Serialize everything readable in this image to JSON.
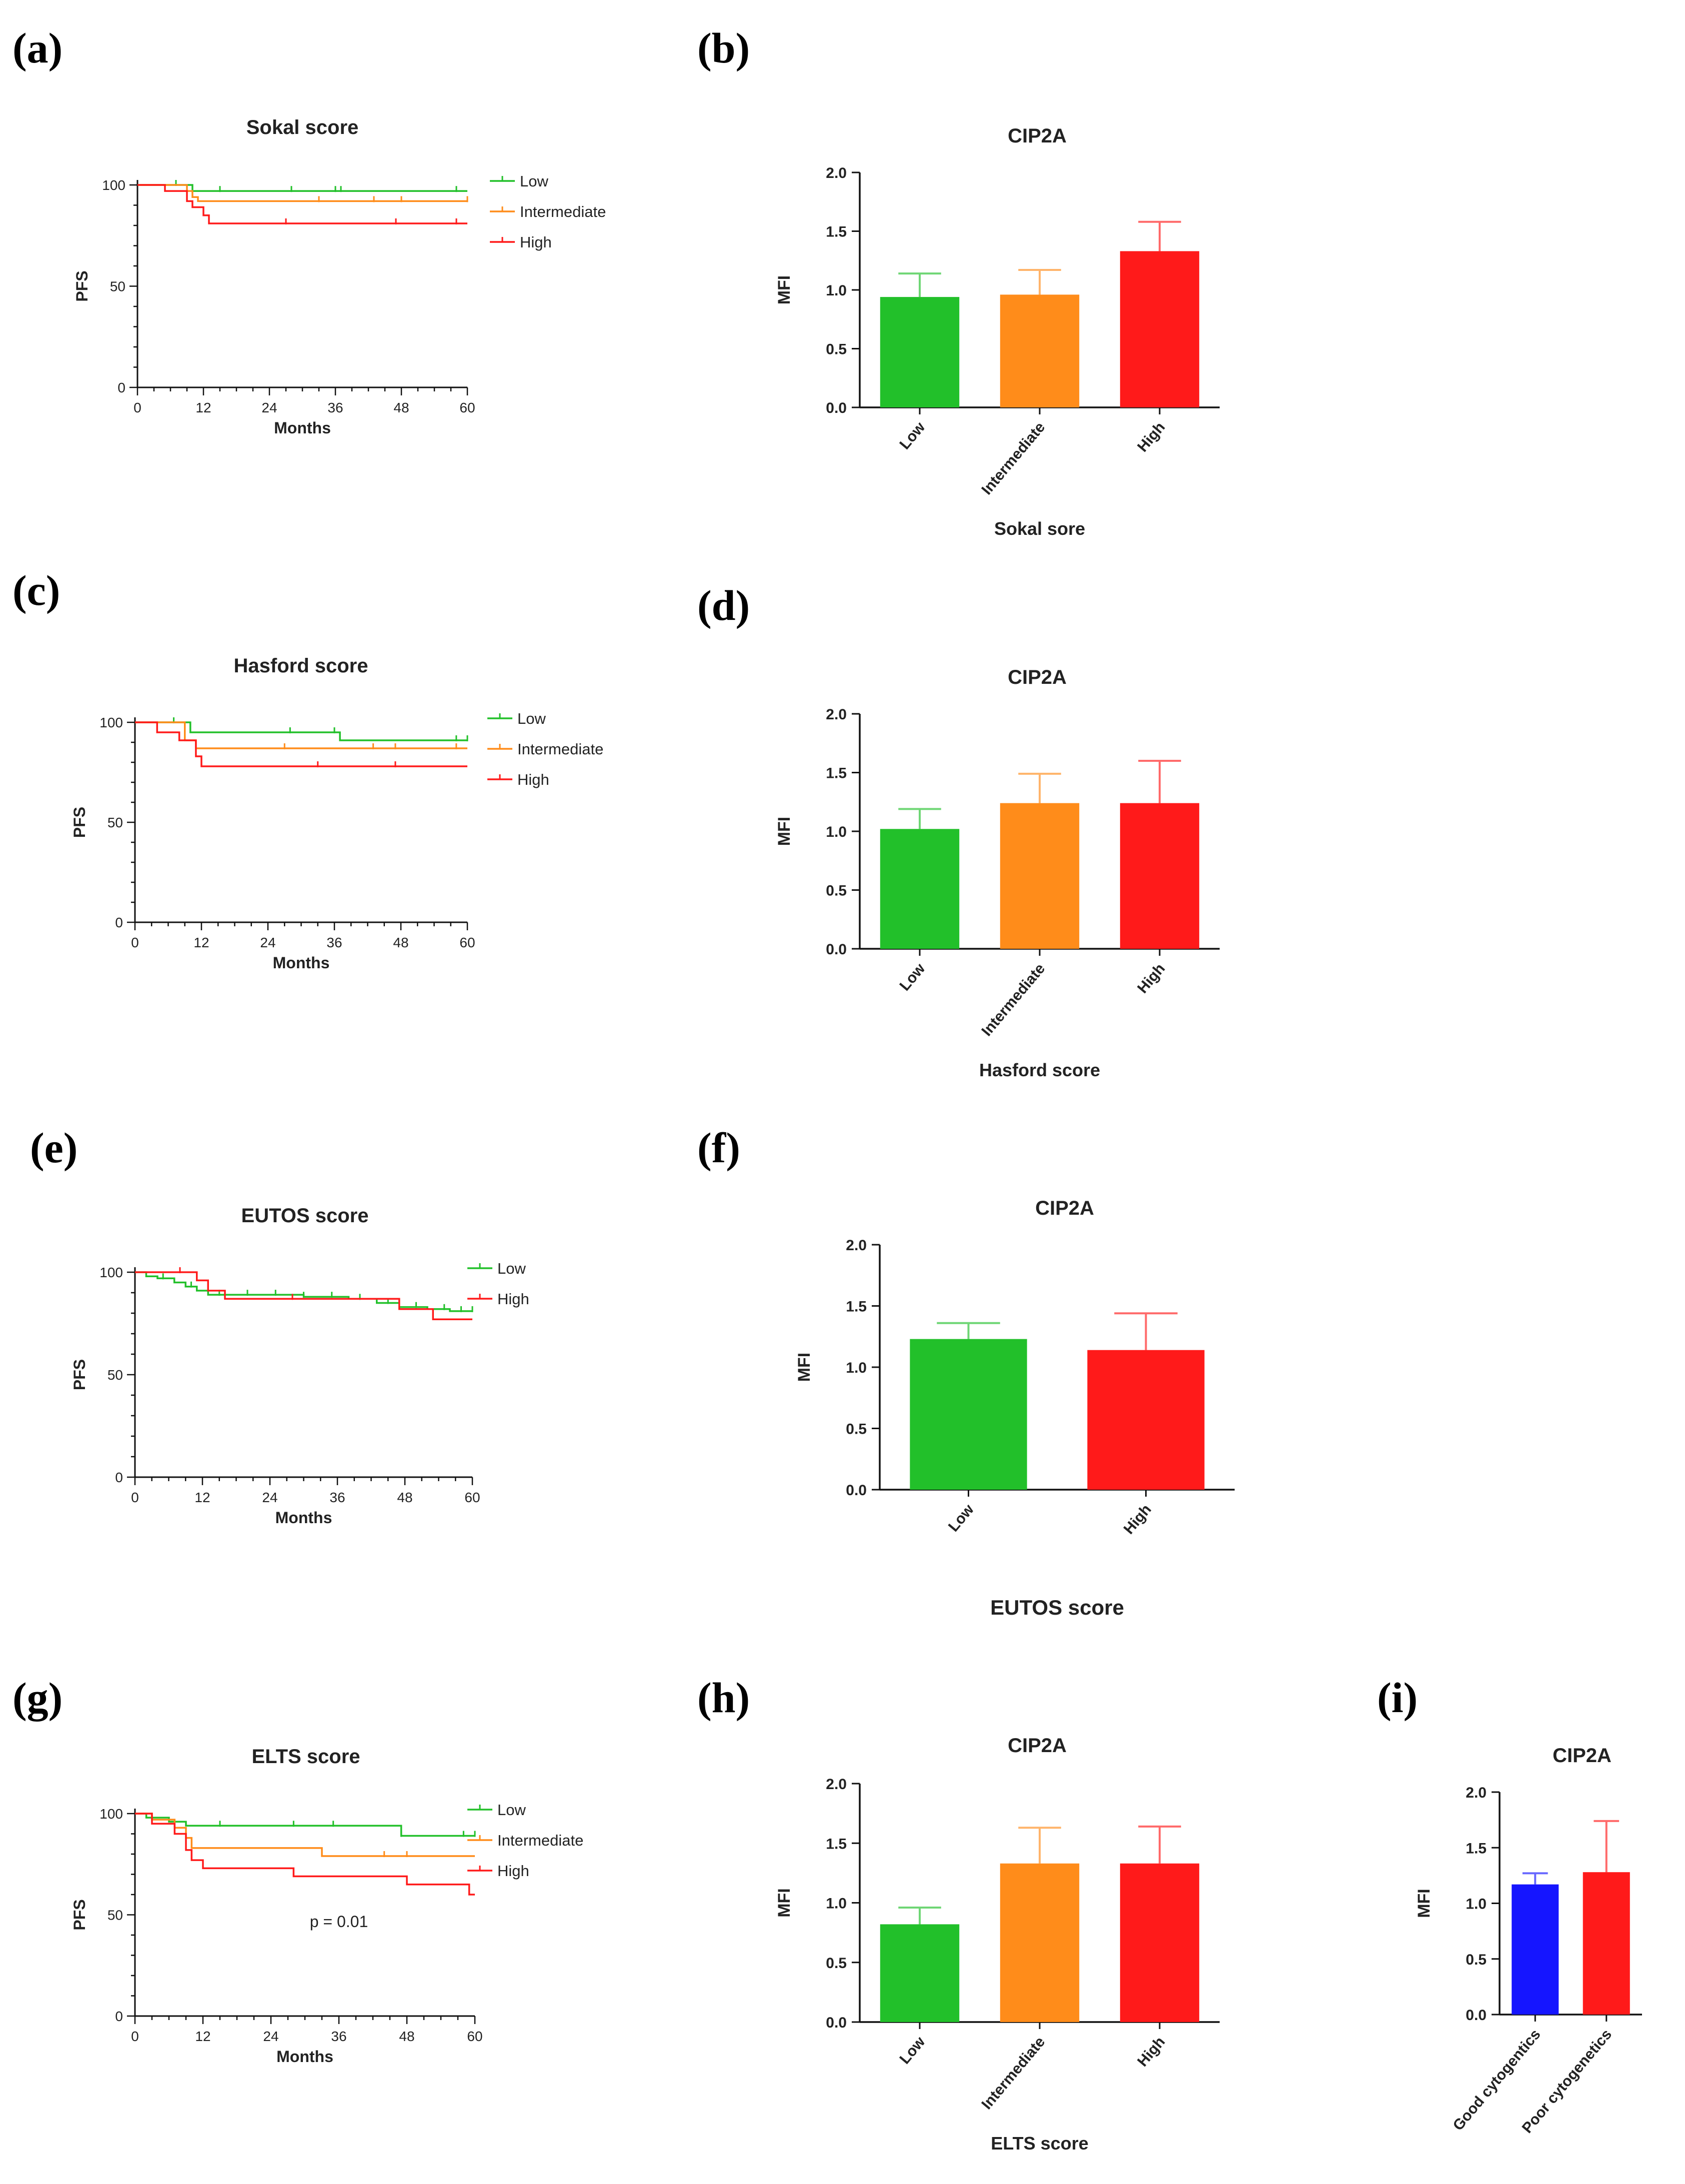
{
  "colors": {
    "low": "#22c02a",
    "intermediate": "#ff8c1a",
    "high": "#ff1a1a",
    "good": "#1515ff",
    "axis": "#111111"
  },
  "chart_data": [
    {
      "panel": "(a)",
      "type": "line",
      "title": "Sokal score",
      "xlabel": "Months",
      "ylabel": "PFS",
      "xlim": [
        0,
        60
      ],
      "ylim": [
        0,
        100
      ],
      "xticks": [
        "0",
        "12",
        "24",
        "36",
        "48",
        "60"
      ],
      "yticks": [
        "0",
        "50",
        "100"
      ],
      "legend": "right",
      "series": [
        {
          "name": "Low",
          "color": "low",
          "steps": [
            [
              0,
              100
            ],
            [
              9,
              100
            ],
            [
              10,
              97
            ],
            [
              60,
              97
            ]
          ],
          "censor": [
            7,
            15,
            28,
            36,
            37,
            58
          ]
        },
        {
          "name": "Intermediate",
          "color": "intermediate",
          "steps": [
            [
              0,
              100
            ],
            [
              8,
              100
            ],
            [
              9,
              97
            ],
            [
              10,
              94
            ],
            [
              11,
              92
            ],
            [
              60,
              92
            ]
          ],
          "censor": [
            33,
            43,
            48,
            60
          ]
        },
        {
          "name": "High",
          "color": "high",
          "steps": [
            [
              0,
              100
            ],
            [
              4,
              100
            ],
            [
              5,
              97
            ],
            [
              8,
              97
            ],
            [
              9,
              92
            ],
            [
              10,
              89
            ],
            [
              12,
              85
            ],
            [
              13,
              81
            ],
            [
              60,
              81
            ]
          ],
          "censor": [
            27,
            47,
            58
          ]
        }
      ]
    },
    {
      "panel": "(b)",
      "type": "bar",
      "title": "CIP2A",
      "xlabel": "Sokal sore",
      "ylabel": "MFI",
      "ylim": [
        0,
        2
      ],
      "yticks": [
        "0.0",
        "0.5",
        "1.0",
        "1.5",
        "2.0"
      ],
      "categories": [
        "Low",
        "Intermediate",
        "High"
      ],
      "values": [
        0.94,
        0.96,
        1.33
      ],
      "errors": [
        0.2,
        0.21,
        0.25
      ],
      "colors": [
        "low",
        "intermediate",
        "high"
      ]
    },
    {
      "panel": "(c)",
      "type": "line",
      "title": "Hasford score",
      "xlabel": "Months",
      "ylabel": "PFS",
      "xlim": [
        0,
        60
      ],
      "ylim": [
        0,
        100
      ],
      "xticks": [
        "0",
        "12",
        "24",
        "36",
        "48",
        "60"
      ],
      "yticks": [
        "0",
        "50",
        "100"
      ],
      "legend": "right",
      "series": [
        {
          "name": "Low",
          "color": "low",
          "steps": [
            [
              0,
              100
            ],
            [
              9,
              100
            ],
            [
              10,
              95
            ],
            [
              36,
              95
            ],
            [
              37,
              91
            ],
            [
              60,
              91
            ]
          ],
          "censor": [
            7,
            28,
            36,
            58,
            60
          ]
        },
        {
          "name": "Intermediate",
          "color": "intermediate",
          "steps": [
            [
              0,
              100
            ],
            [
              8,
              100
            ],
            [
              9,
              91
            ],
            [
              11,
              87
            ],
            [
              60,
              87
            ]
          ],
          "censor": [
            27,
            43,
            47,
            58
          ]
        },
        {
          "name": "High",
          "color": "high",
          "steps": [
            [
              0,
              100
            ],
            [
              3,
              100
            ],
            [
              4,
              95
            ],
            [
              7,
              95
            ],
            [
              8,
              91
            ],
            [
              11,
              83
            ],
            [
              12,
              78
            ],
            [
              60,
              78
            ]
          ],
          "censor": [
            33,
            47
          ]
        }
      ]
    },
    {
      "panel": "(d)",
      "type": "bar",
      "title": "CIP2A",
      "xlabel": "Hasford score",
      "ylabel": "MFI",
      "ylim": [
        0,
        2
      ],
      "yticks": [
        "0.0",
        "0.5",
        "1.0",
        "1.5",
        "2.0"
      ],
      "categories": [
        "Low",
        "Intermediate",
        "High"
      ],
      "values": [
        1.02,
        1.24,
        1.24
      ],
      "errors": [
        0.17,
        0.25,
        0.36
      ],
      "colors": [
        "low",
        "intermediate",
        "high"
      ]
    },
    {
      "panel": "(e)",
      "type": "line",
      "title": "EUTOS score",
      "xlabel": "Months",
      "ylabel": "PFS",
      "xlim": [
        0,
        60
      ],
      "ylim": [
        0,
        100
      ],
      "xticks": [
        "0",
        "12",
        "24",
        "36",
        "48",
        "60"
      ],
      "yticks": [
        "0",
        "50",
        "100"
      ],
      "legend": "right",
      "series": [
        {
          "name": "Low",
          "color": "low",
          "steps": [
            [
              0,
              100
            ],
            [
              2,
              98
            ],
            [
              4,
              97
            ],
            [
              7,
              95
            ],
            [
              9,
              93
            ],
            [
              11,
              91
            ],
            [
              13,
              89
            ],
            [
              30,
              88
            ],
            [
              38,
              87
            ],
            [
              43,
              85
            ],
            [
              47,
              83
            ],
            [
              52,
              82
            ],
            [
              56,
              81
            ],
            [
              60,
              81
            ]
          ],
          "censor": [
            5,
            10,
            15,
            20,
            25,
            30,
            35,
            40,
            45,
            50,
            55,
            58,
            60
          ]
        },
        {
          "name": "High",
          "color": "high",
          "steps": [
            [
              0,
              100
            ],
            [
              10,
              100
            ],
            [
              11,
              96
            ],
            [
              13,
              91
            ],
            [
              16,
              87
            ],
            [
              46,
              87
            ],
            [
              47,
              82
            ],
            [
              52,
              82
            ],
            [
              53,
              77
            ],
            [
              60,
              77
            ]
          ],
          "censor": [
            8,
            28
          ]
        }
      ]
    },
    {
      "panel": "(f)",
      "type": "bar",
      "title": "CIP2A",
      "xlabel": "EUTOS score",
      "ylabel": "MFI",
      "ylim": [
        0,
        2
      ],
      "yticks": [
        "0.0",
        "0.5",
        "1.0",
        "1.5",
        "2.0"
      ],
      "categories": [
        "Low",
        "High"
      ],
      "values": [
        1.23,
        1.14
      ],
      "errors": [
        0.13,
        0.3
      ],
      "colors": [
        "low",
        "high"
      ]
    },
    {
      "panel": "(g)",
      "type": "line",
      "title": "ELTS score",
      "xlabel": "Months",
      "ylabel": "PFS",
      "xlim": [
        0,
        60
      ],
      "ylim": [
        0,
        100
      ],
      "xticks": [
        "0",
        "12",
        "24",
        "36",
        "48",
        "60"
      ],
      "yticks": [
        "0",
        "50",
        "100"
      ],
      "legend": "right",
      "annotation": "p = 0.01",
      "series": [
        {
          "name": "Low",
          "color": "low",
          "steps": [
            [
              0,
              100
            ],
            [
              2,
              98
            ],
            [
              6,
              96
            ],
            [
              9,
              94
            ],
            [
              46,
              94
            ],
            [
              47,
              89
            ],
            [
              60,
              89
            ]
          ],
          "censor": [
            3,
            15,
            28,
            35,
            47,
            58,
            60
          ]
        },
        {
          "name": "Intermediate",
          "color": "intermediate",
          "steps": [
            [
              0,
              100
            ],
            [
              3,
              97
            ],
            [
              7,
              93
            ],
            [
              9,
              88
            ],
            [
              10,
              83
            ],
            [
              32,
              83
            ],
            [
              33,
              79
            ],
            [
              60,
              79
            ]
          ],
          "censor": [
            44,
            48
          ]
        },
        {
          "name": "High",
          "color": "high",
          "steps": [
            [
              0,
              100
            ],
            [
              3,
              95
            ],
            [
              7,
              90
            ],
            [
              9,
              82
            ],
            [
              10,
              77
            ],
            [
              12,
              73
            ],
            [
              27,
              73
            ],
            [
              28,
              69
            ],
            [
              47,
              69
            ],
            [
              48,
              65
            ],
            [
              58,
              65
            ],
            [
              59,
              60
            ],
            [
              60,
              60
            ]
          ],
          "censor": []
        }
      ]
    },
    {
      "panel": "(h)",
      "type": "bar",
      "title": "CIP2A",
      "xlabel": "ELTS score",
      "ylabel": "MFI",
      "ylim": [
        0,
        2
      ],
      "yticks": [
        "0.0",
        "0.5",
        "1.0",
        "1.5",
        "2.0"
      ],
      "categories": [
        "Low",
        "Intermediate",
        "High"
      ],
      "values": [
        0.82,
        1.33,
        1.33
      ],
      "errors": [
        0.14,
        0.3,
        0.31
      ],
      "colors": [
        "low",
        "intermediate",
        "high"
      ]
    },
    {
      "panel": "(i)",
      "type": "bar",
      "title": "CIP2A",
      "xlabel": "",
      "ylabel": "MFI",
      "ylim": [
        0,
        2
      ],
      "yticks": [
        "0.0",
        "0.5",
        "1.0",
        "1.5",
        "2.0"
      ],
      "categories": [
        "Good cytogentics",
        "Poor cytogenetics"
      ],
      "values": [
        1.17,
        1.28
      ],
      "errors": [
        0.1,
        0.46
      ],
      "colors": [
        "good",
        "high"
      ]
    }
  ]
}
